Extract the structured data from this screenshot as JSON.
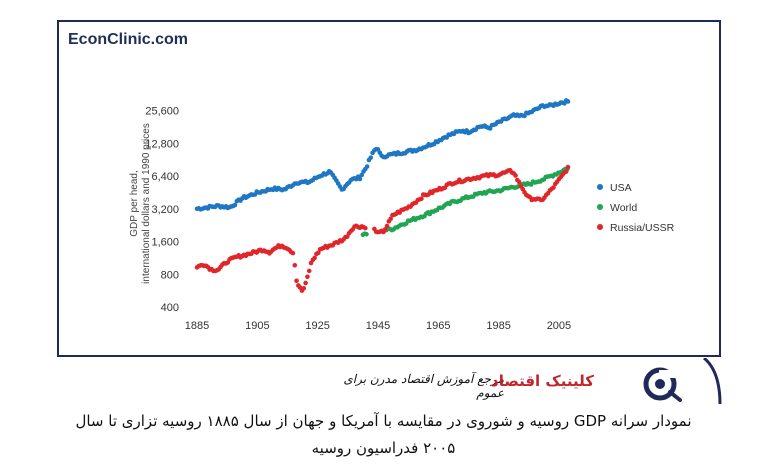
{
  "brand": "EconClinic.com",
  "logo": {
    "title": "کلینیک اقتصاد",
    "tagline": "مرجع آموزش اقتصاد مدرن برای عموم"
  },
  "caption": {
    "line1": "نمودار سرانه GDP روسیه و شوروی در مقایسه با آمریکا و جهان از سال ۱۸۸۵ روسیه تزاری تا سال",
    "line2": "۲۰۰۵ فدراسیون روسیه"
  },
  "colors": {
    "usa": "#1f77c4",
    "world": "#21a553",
    "russia": "#e0262a",
    "brand": "#1f2a5a",
    "accent": "#c0262d"
  },
  "chart_data": {
    "type": "scatter",
    "ylabel": "GDP per head, international dollars and 1990 prices",
    "xlabel": "",
    "yscale": "log2",
    "ylim": [
      400,
      32000
    ],
    "xlim": [
      1883,
      2009
    ],
    "y_ticks": [
      400,
      800,
      1600,
      3200,
      6400,
      12800,
      25600
    ],
    "y_tick_labels": [
      "400",
      "800",
      "1,600",
      "3,200",
      "6,400",
      "12,800",
      "25,600"
    ],
    "x_ticks": [
      1885,
      1905,
      1925,
      1945,
      1965,
      1985,
      2005
    ],
    "x_tick_labels": [
      "1885",
      "1905",
      "1925",
      "1945",
      "1965",
      "1985",
      "2005"
    ],
    "legend_position": "right",
    "series": [
      {
        "name": "USA",
        "color": "#1f77c4",
        "anchors": [
          [
            1885,
            3200
          ],
          [
            1892,
            3400
          ],
          [
            1896,
            3300
          ],
          [
            1900,
            4000
          ],
          [
            1905,
            4500
          ],
          [
            1910,
            4900
          ],
          [
            1914,
            4800
          ],
          [
            1918,
            5600
          ],
          [
            1922,
            5600
          ],
          [
            1926,
            6500
          ],
          [
            1929,
            7000
          ],
          [
            1931,
            5800
          ],
          [
            1933,
            4800
          ],
          [
            1936,
            5900
          ],
          [
            1939,
            6200
          ],
          [
            1941,
            7600
          ],
          [
            1943,
            10000
          ],
          [
            1944,
            11200
          ],
          [
            1945,
            11500
          ],
          [
            1946,
            9600
          ],
          [
            1948,
            9900
          ],
          [
            1952,
            10400
          ],
          [
            1958,
            11200
          ],
          [
            1963,
            12700
          ],
          [
            1968,
            15000
          ],
          [
            1973,
            16800
          ],
          [
            1975,
            16300
          ],
          [
            1979,
            18400
          ],
          [
            1982,
            17800
          ],
          [
            1985,
            19900
          ],
          [
            1990,
            23000
          ],
          [
            1992,
            22600
          ],
          [
            1995,
            24200
          ],
          [
            2000,
            28500
          ],
          [
            2002,
            28300
          ],
          [
            2006,
            30500
          ],
          [
            2008,
            31000
          ]
        ]
      },
      {
        "name": "World",
        "color": "#21a553",
        "anchors": [
          [
            1940,
            1900
          ],
          [
            1941,
            1900
          ],
          [
            1950,
            2100
          ],
          [
            1955,
            2450
          ],
          [
            1960,
            2770
          ],
          [
            1965,
            3200
          ],
          [
            1970,
            3700
          ],
          [
            1975,
            4100
          ],
          [
            1980,
            4500
          ],
          [
            1985,
            4700
          ],
          [
            1990,
            5100
          ],
          [
            1995,
            5400
          ],
          [
            2000,
            6000
          ],
          [
            2005,
            6900
          ],
          [
            2008,
            7600
          ]
        ]
      },
      {
        "name": "Russia/USSR",
        "color": "#e0262a",
        "anchors": [
          [
            1885,
            920
          ],
          [
            1887,
            1000
          ],
          [
            1890,
            880
          ],
          [
            1892,
            880
          ],
          [
            1895,
            1050
          ],
          [
            1898,
            1150
          ],
          [
            1903,
            1250
          ],
          [
            1907,
            1350
          ],
          [
            1909,
            1280
          ],
          [
            1911,
            1390
          ],
          [
            1913,
            1480
          ],
          [
            1915,
            1400
          ],
          [
            1917,
            1250
          ],
          [
            1918,
            700
          ],
          [
            1919,
            600
          ],
          [
            1920,
            560
          ],
          [
            1921,
            650
          ],
          [
            1923,
            1050
          ],
          [
            1926,
            1370
          ],
          [
            1930,
            1500
          ],
          [
            1934,
            1700
          ],
          [
            1937,
            2200
          ],
          [
            1940,
            2200
          ],
          [
            1941,
            2100
          ],
          [
            1943,
            1900
          ],
          [
            1944,
            2100
          ],
          [
            1945,
            1900
          ],
          [
            1947,
            2000
          ],
          [
            1950,
            2800
          ],
          [
            1955,
            3300
          ],
          [
            1960,
            4200
          ],
          [
            1965,
            4800
          ],
          [
            1970,
            5600
          ],
          [
            1975,
            6000
          ],
          [
            1980,
            6400
          ],
          [
            1985,
            6600
          ],
          [
            1989,
            7100
          ],
          [
            1990,
            6900
          ],
          [
            1992,
            5400
          ],
          [
            1995,
            4000
          ],
          [
            1997,
            3950
          ],
          [
            1999,
            3800
          ],
          [
            2001,
            4300
          ],
          [
            2004,
            5400
          ],
          [
            2006,
            6400
          ],
          [
            2008,
            7600
          ]
        ]
      }
    ]
  }
}
